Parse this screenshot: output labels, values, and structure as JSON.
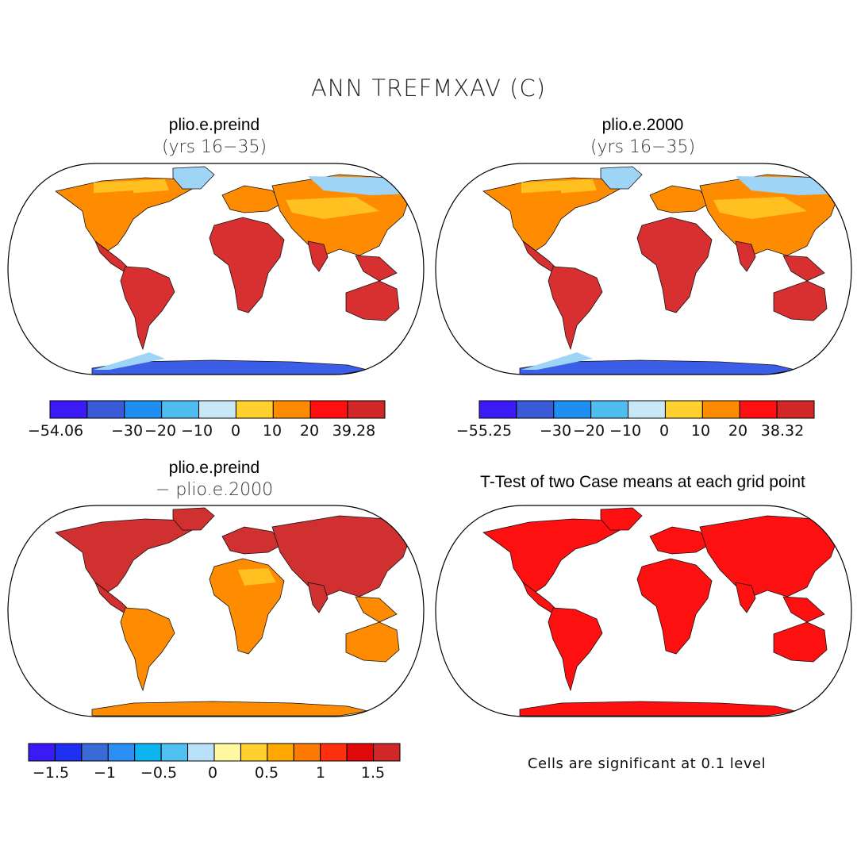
{
  "figure": {
    "title": "ANN TREFMXAV (C)"
  },
  "panels": [
    {
      "id": "p1",
      "title": "plio.e.preind",
      "subtitle": "(yrs 16−35)",
      "colorbar": {
        "colors": [
          "#3b1bf5",
          "#3a5ad8",
          "#1e8ef0",
          "#50bdf0",
          "#c8e8f8",
          "#ffd030",
          "#ff8c00",
          "#ff1010",
          "#d02828"
        ],
        "labels": [
          "−54.06",
          "−30",
          "−20",
          "−10",
          "0",
          "10",
          "20",
          "39.28"
        ]
      }
    },
    {
      "id": "p2",
      "title": "plio.e.2000",
      "subtitle": "(yrs 16−35)",
      "colorbar": {
        "colors": [
          "#3b1bf5",
          "#3a5ad8",
          "#1e8ef0",
          "#50bdf0",
          "#c8e8f8",
          "#ffd030",
          "#ff8c00",
          "#ff1010",
          "#d02828"
        ],
        "labels": [
          "−55.25",
          "−30",
          "−20",
          "−10",
          "0",
          "10",
          "20",
          "38.32"
        ]
      }
    },
    {
      "id": "p3",
      "title": "plio.e.preind",
      "subtitle": "− plio.e.2000",
      "colorbar": {
        "colors": [
          "#3b1bf5",
          "#2030f0",
          "#3a6ad8",
          "#2a8ef5",
          "#0eb4f0",
          "#50c0f0",
          "#b8e0f8",
          "#fff8a0",
          "#ffd030",
          "#ffa800",
          "#ff7a00",
          "#ff3010",
          "#e00808",
          "#d02828"
        ],
        "labels": [
          "−1.5",
          "−1",
          "−0.5",
          "0",
          "0.5",
          "1",
          "1.5"
        ]
      }
    },
    {
      "id": "p4",
      "title": "T-Test of two Case means at each grid point",
      "note": "Cells are significant at 0.1 level"
    }
  ],
  "colors": {
    "land_p1": "#d83030",
    "land_p2": "#d83030",
    "land_p3": "#d03030",
    "land_p4": "#ff1010",
    "cold": "#3b5de8",
    "cool": "#9ed4f5",
    "warm": "#ffc020",
    "orange": "#ff8c00"
  }
}
